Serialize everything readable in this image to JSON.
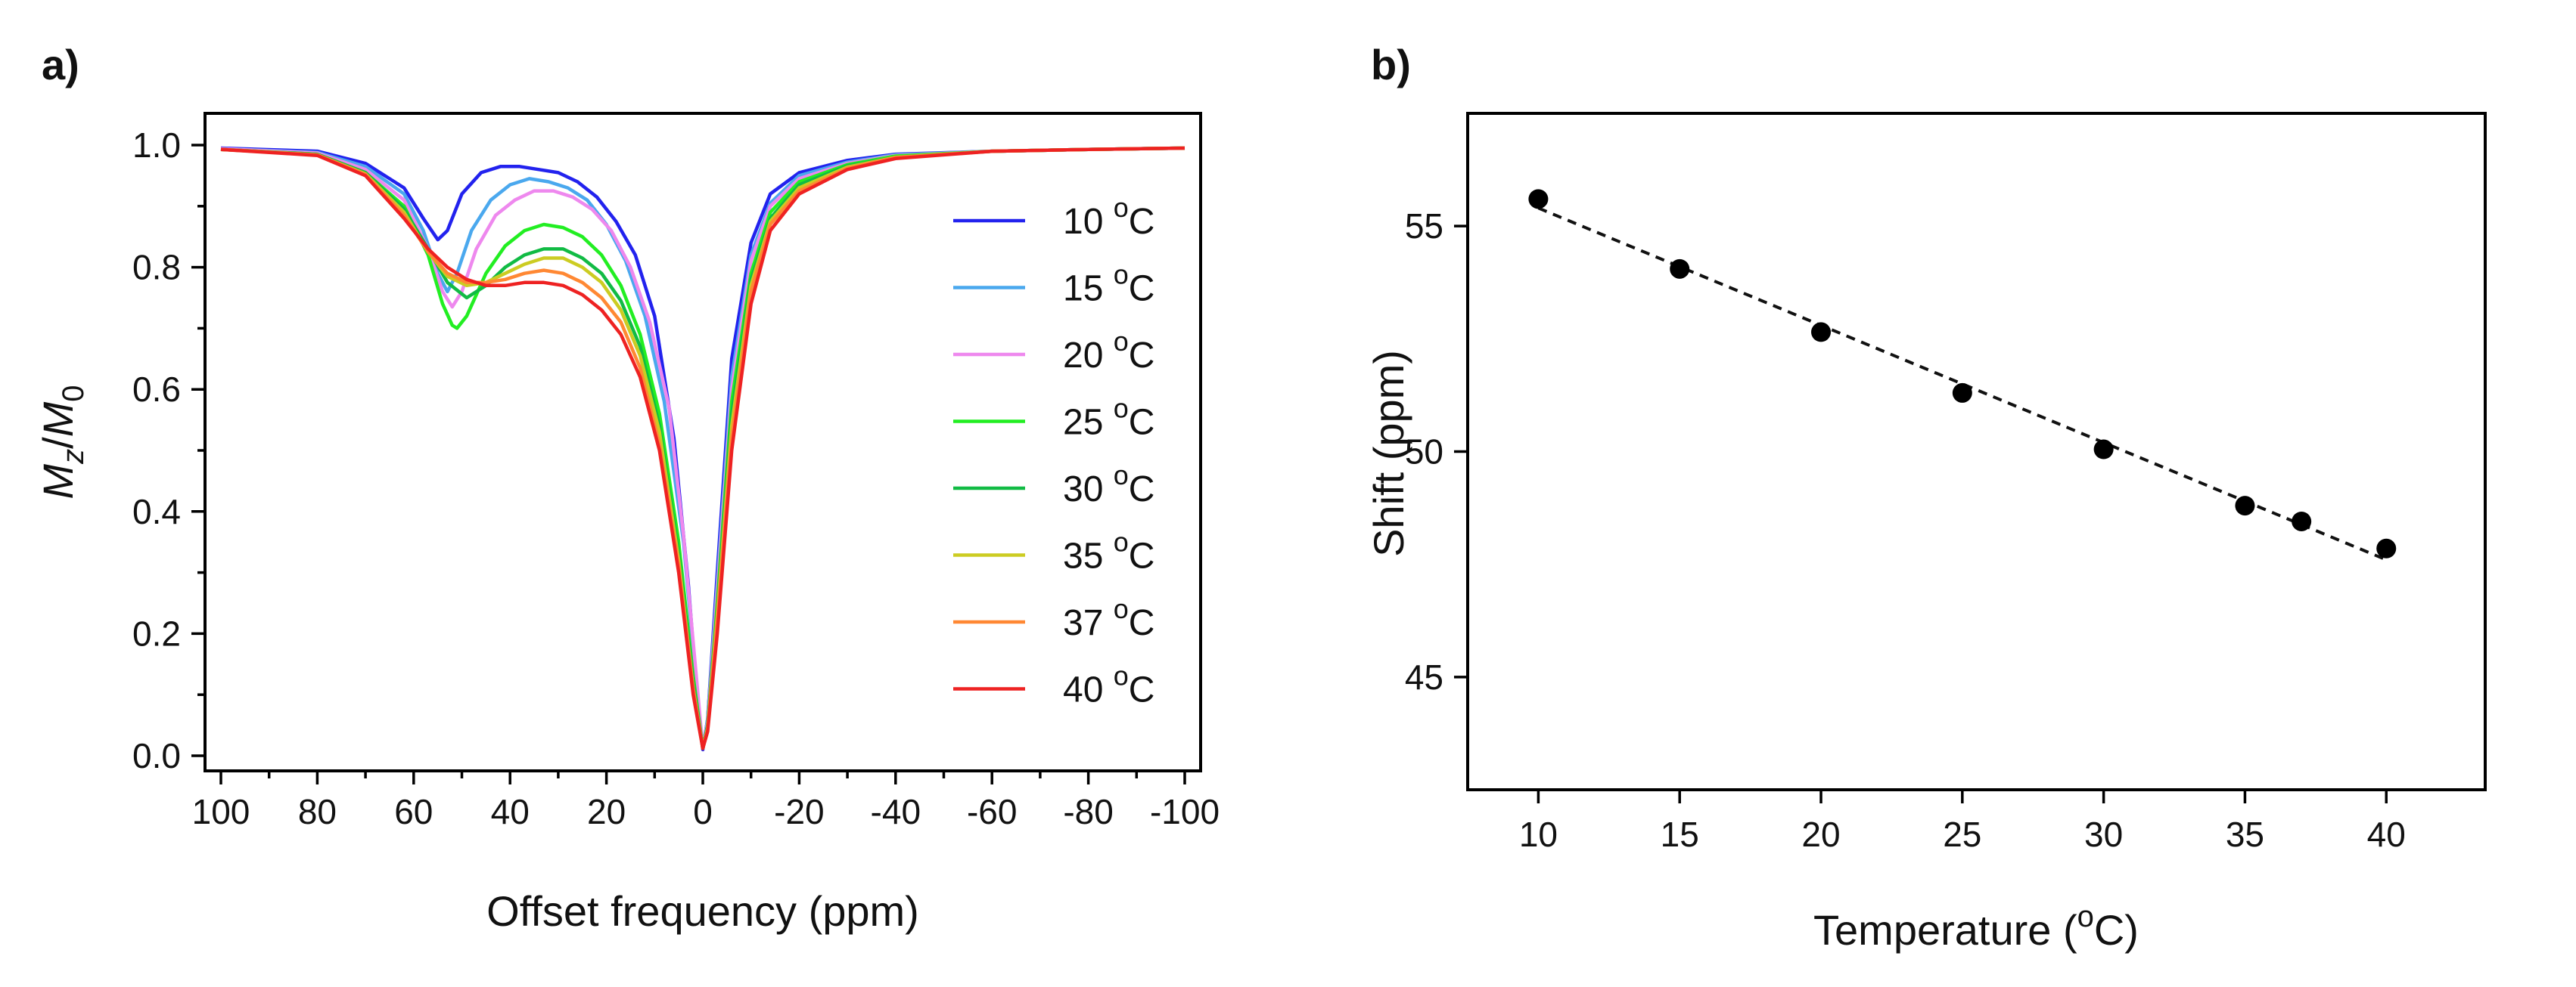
{
  "figure": {
    "panel_a_label": "a)",
    "panel_b_label": "b)"
  },
  "chart_data": [
    {
      "type": "line",
      "panel": "a)",
      "title": "",
      "xlabel": "Offset frequency (ppm)",
      "ylabel_main": "M",
      "ylabel_sub1": "z",
      "ylabel_sep": "/",
      "ylabel_main2": "M",
      "ylabel_sub2": "0",
      "xlim": [
        100,
        -100
      ],
      "ylim": [
        0,
        1.0
      ],
      "xticks": [
        100,
        80,
        60,
        40,
        20,
        0,
        -20,
        -40,
        -60,
        -80,
        -100
      ],
      "xtick_labels": [
        "100",
        "80",
        "60",
        "40",
        "20",
        "0",
        "-20",
        "-40",
        "-60",
        "-80",
        "-100"
      ],
      "yticks": [
        0,
        0.2,
        0.4,
        0.6,
        0.8,
        1.0
      ],
      "ytick_labels": [
        "0.0",
        "0.2",
        "0.4",
        "0.6",
        "0.8",
        "1.0"
      ],
      "legend_position": "right",
      "series": [
        {
          "name": "10 °C",
          "num": "10 ",
          "sup": "o",
          "unit": "C",
          "color": "#2222ee",
          "x": [
            100,
            80,
            70,
            62,
            58,
            55,
            53,
            50,
            46,
            42,
            38,
            34,
            30,
            26,
            22,
            18,
            14,
            10,
            6,
            3,
            1,
            0,
            -1,
            -3,
            -6,
            -10,
            -14,
            -20,
            -30,
            -40,
            -60,
            -80,
            -100
          ],
          "y": [
            0.995,
            0.99,
            0.97,
            0.93,
            0.88,
            0.845,
            0.86,
            0.92,
            0.955,
            0.965,
            0.965,
            0.96,
            0.955,
            0.94,
            0.915,
            0.875,
            0.82,
            0.72,
            0.52,
            0.28,
            0.08,
            0.01,
            0.06,
            0.3,
            0.65,
            0.84,
            0.92,
            0.955,
            0.975,
            0.985,
            0.99,
            0.993,
            0.995
          ]
        },
        {
          "name": "15 °C",
          "num": "15 ",
          "sup": "o",
          "unit": "C",
          "color": "#4aa8ee",
          "x": [
            100,
            80,
            70,
            62,
            58,
            55,
            53,
            51,
            48,
            44,
            40,
            36,
            32,
            28,
            24,
            20,
            16,
            12,
            8,
            4,
            1,
            0,
            -1,
            -3,
            -6,
            -10,
            -14,
            -20,
            -30,
            -40,
            -60,
            -80,
            -100
          ],
          "y": [
            0.994,
            0.988,
            0.965,
            0.92,
            0.86,
            0.79,
            0.76,
            0.79,
            0.86,
            0.91,
            0.935,
            0.945,
            0.94,
            0.93,
            0.91,
            0.87,
            0.81,
            0.72,
            0.58,
            0.35,
            0.09,
            0.012,
            0.06,
            0.28,
            0.62,
            0.82,
            0.905,
            0.95,
            0.972,
            0.984,
            0.99,
            0.993,
            0.995
          ]
        },
        {
          "name": "20 °C",
          "num": "20 ",
          "sup": "o",
          "unit": "C",
          "color": "#ee88ee",
          "x": [
            100,
            80,
            70,
            62,
            57,
            54,
            52,
            50,
            47,
            43,
            39,
            35,
            31,
            27,
            23,
            19,
            15,
            11,
            7,
            4,
            1,
            0,
            -1,
            -3,
            -6,
            -10,
            -14,
            -20,
            -30,
            -40,
            -60,
            -80,
            -100
          ],
          "y": [
            0.994,
            0.987,
            0.96,
            0.91,
            0.83,
            0.76,
            0.735,
            0.76,
            0.83,
            0.885,
            0.91,
            0.925,
            0.925,
            0.915,
            0.895,
            0.86,
            0.8,
            0.71,
            0.57,
            0.36,
            0.1,
            0.012,
            0.055,
            0.27,
            0.6,
            0.81,
            0.9,
            0.945,
            0.97,
            0.983,
            0.99,
            0.993,
            0.995
          ]
        },
        {
          "name": "25 °C",
          "num": "25 ",
          "sup": "o",
          "unit": "C",
          "color": "#22ee22",
          "x": [
            100,
            80,
            70,
            62,
            57,
            54,
            52,
            51,
            49,
            45,
            41,
            37,
            33,
            29,
            25,
            21,
            17,
            13,
            9,
            5,
            2,
            0,
            -1,
            -3,
            -6,
            -10,
            -14,
            -20,
            -30,
            -40,
            -60,
            -80,
            -100
          ],
          "y": [
            0.993,
            0.985,
            0.955,
            0.9,
            0.82,
            0.74,
            0.705,
            0.7,
            0.72,
            0.79,
            0.835,
            0.86,
            0.87,
            0.865,
            0.85,
            0.82,
            0.77,
            0.69,
            0.56,
            0.35,
            0.13,
            0.012,
            0.05,
            0.25,
            0.58,
            0.79,
            0.89,
            0.94,
            0.968,
            0.982,
            0.99,
            0.993,
            0.995
          ]
        },
        {
          "name": "30 °C",
          "num": "30 ",
          "sup": "o",
          "unit": "C",
          "color": "#11bb44",
          "x": [
            100,
            80,
            70,
            62,
            57,
            53,
            49,
            45,
            41,
            37,
            33,
            29,
            25,
            21,
            17,
            13,
            9,
            5,
            2,
            0,
            -1,
            -3,
            -6,
            -10,
            -14,
            -20,
            -30,
            -40,
            -60,
            -80,
            -100
          ],
          "y": [
            0.993,
            0.985,
            0.955,
            0.895,
            0.83,
            0.775,
            0.75,
            0.77,
            0.8,
            0.82,
            0.83,
            0.83,
            0.815,
            0.79,
            0.745,
            0.67,
            0.54,
            0.33,
            0.12,
            0.012,
            0.05,
            0.24,
            0.56,
            0.78,
            0.88,
            0.935,
            0.966,
            0.98,
            0.99,
            0.993,
            0.995
          ]
        },
        {
          "name": "35 °C",
          "num": "35 ",
          "sup": "o",
          "unit": "C",
          "color": "#cccc22",
          "x": [
            100,
            80,
            70,
            62,
            57,
            53,
            49,
            45,
            41,
            37,
            33,
            29,
            25,
            21,
            17,
            13,
            9,
            5,
            2,
            0,
            -1,
            -3,
            -6,
            -10,
            -14,
            -20,
            -30,
            -40,
            -60,
            -80,
            -100
          ],
          "y": [
            0.993,
            0.984,
            0.953,
            0.89,
            0.825,
            0.785,
            0.77,
            0.775,
            0.79,
            0.805,
            0.815,
            0.815,
            0.8,
            0.775,
            0.73,
            0.655,
            0.53,
            0.32,
            0.11,
            0.012,
            0.045,
            0.23,
            0.54,
            0.77,
            0.875,
            0.93,
            0.964,
            0.98,
            0.99,
            0.993,
            0.995
          ]
        },
        {
          "name": "37 °C",
          "num": "37 ",
          "sup": "o",
          "unit": "C",
          "color": "#ff8833",
          "x": [
            100,
            80,
            70,
            62,
            57,
            53,
            49,
            45,
            41,
            37,
            33,
            29,
            25,
            21,
            17,
            13,
            9,
            5,
            2,
            0,
            -1,
            -3,
            -6,
            -10,
            -14,
            -20,
            -30,
            -40,
            -60,
            -80,
            -100
          ],
          "y": [
            0.993,
            0.984,
            0.952,
            0.885,
            0.825,
            0.79,
            0.775,
            0.775,
            0.78,
            0.79,
            0.795,
            0.79,
            0.775,
            0.75,
            0.71,
            0.635,
            0.51,
            0.31,
            0.11,
            0.012,
            0.045,
            0.22,
            0.52,
            0.76,
            0.87,
            0.925,
            0.962,
            0.98,
            0.99,
            0.993,
            0.995
          ]
        },
        {
          "name": "40 °C",
          "num": "40 ",
          "sup": "o",
          "unit": "C",
          "color": "#ee2222",
          "x": [
            100,
            80,
            70,
            62,
            57,
            53,
            49,
            45,
            41,
            37,
            33,
            29,
            25,
            21,
            17,
            13,
            9,
            5,
            2,
            0,
            -1,
            -3,
            -6,
            -10,
            -14,
            -20,
            -30,
            -40,
            -60,
            -80,
            -100
          ],
          "y": [
            0.993,
            0.983,
            0.95,
            0.88,
            0.83,
            0.8,
            0.78,
            0.77,
            0.77,
            0.775,
            0.775,
            0.77,
            0.755,
            0.73,
            0.69,
            0.62,
            0.5,
            0.3,
            0.1,
            0.012,
            0.04,
            0.2,
            0.5,
            0.74,
            0.86,
            0.92,
            0.96,
            0.978,
            0.99,
            0.993,
            0.995
          ]
        }
      ]
    },
    {
      "type": "scatter",
      "panel": "b)",
      "title": "",
      "xlabel_main": "Temperature (",
      "xlabel_sup": "o",
      "xlabel_unit": "C)",
      "ylabel": "Shift (ppm)",
      "xlim": [
        7.5,
        43.5
      ],
      "ylim": [
        42.5,
        57.5
      ],
      "xticks": [
        10,
        15,
        20,
        25,
        30,
        35,
        40
      ],
      "xtick_labels": [
        "10",
        "15",
        "20",
        "25",
        "30",
        "35",
        "40"
      ],
      "yticks": [
        45,
        50,
        55
      ],
      "ytick_labels": [
        "45",
        "50",
        "55"
      ],
      "points": {
        "x": [
          10,
          15,
          20,
          25,
          30,
          35,
          37,
          40
        ],
        "y": [
          55.6,
          54.05,
          52.65,
          51.3,
          50.05,
          48.8,
          48.45,
          47.85
        ]
      },
      "fit_line": {
        "style": "dashed",
        "x": [
          10,
          40
        ],
        "y": [
          55.4,
          47.6
        ]
      }
    }
  ]
}
